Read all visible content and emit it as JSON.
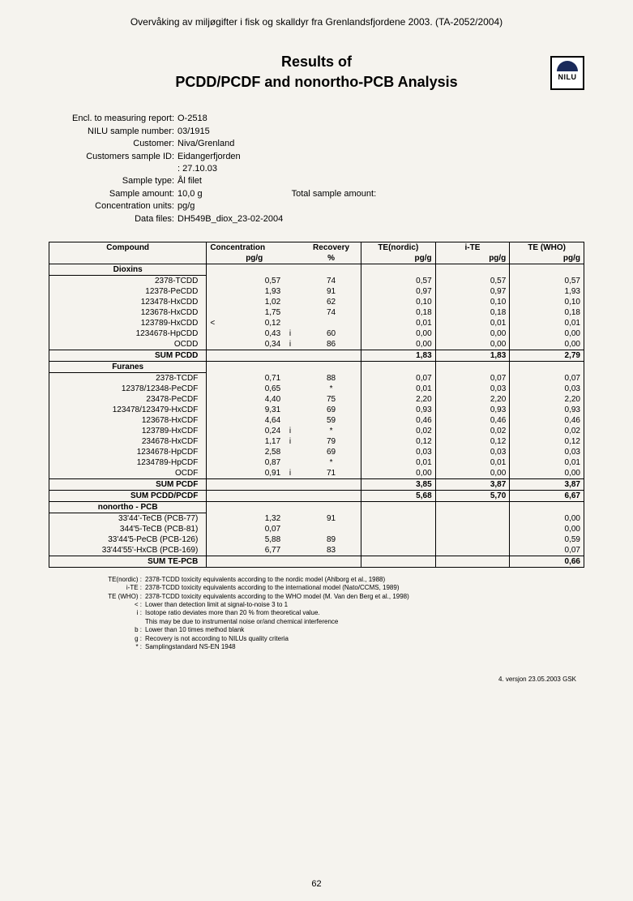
{
  "header": "Overvåking av miljøgifter i fisk og skalldyr fra Grenlandsfjordene 2003. (TA-2052/2004)",
  "title_line1": "Results of",
  "title_line2": "PCDD/PCDF and nonortho-PCB Analysis",
  "logo_label": "NILU",
  "meta": {
    "encl_label": "Encl. to measuring report:",
    "encl_val": "O-2518",
    "nilu_label": "NILU sample number:",
    "nilu_val": "03/1915",
    "cust_label": "Customer:",
    "cust_val": "Niva/Grenland",
    "csid_label": "Customers sample ID:",
    "csid_val": "Eidangerfjorden",
    "date_val": ": 27.10.03",
    "stype_label": "Sample type:",
    "stype_val": "Ål filet",
    "samount_label": "Sample amount:",
    "samount_val": "10,0 g",
    "total_label": "Total sample amount:",
    "conc_label": "Concentration units:",
    "conc_val": "pg/g",
    "data_label": "Data files:",
    "data_val": "DH549B_diox_23-02-2004"
  },
  "table": {
    "head": {
      "compound": "Compound",
      "conc": "Concentration",
      "recov": "Recovery",
      "ten": "TE(nordic)",
      "ite": "i-TE",
      "tewho": "TE (WHO)",
      "pgg": "pg/g",
      "pct": "%"
    },
    "sections": {
      "dioxins": "Dioxins",
      "furanes": "Furanes",
      "nonortho": "nonortho - PCB"
    },
    "dioxins": [
      {
        "n": "2378-TCDD",
        "c": "0,57",
        "f": "",
        "r": "74",
        "t": "0,57",
        "i": "0,57",
        "w": "0,57"
      },
      {
        "n": "12378-PeCDD",
        "c": "1,93",
        "f": "",
        "r": "91",
        "t": "0,97",
        "i": "0,97",
        "w": "1,93"
      },
      {
        "n": "123478-HxCDD",
        "c": "1,02",
        "f": "",
        "r": "62",
        "t": "0,10",
        "i": "0,10",
        "w": "0,10"
      },
      {
        "n": "123678-HxCDD",
        "c": "1,75",
        "f": "",
        "r": "74",
        "t": "0,18",
        "i": "0,18",
        "w": "0,18"
      },
      {
        "n": "123789-HxCDD",
        "c": "0,12",
        "pre": "<",
        "f": "",
        "r": "",
        "t": "0,01",
        "i": "0,01",
        "w": "0,01"
      },
      {
        "n": "1234678-HpCDD",
        "c": "0,43",
        "f": "i",
        "r": "60",
        "t": "0,00",
        "i": "0,00",
        "w": "0,00"
      },
      {
        "n": "OCDD",
        "c": "0,34",
        "f": "i",
        "r": "86",
        "t": "0,00",
        "i": "0,00",
        "w": "0,00"
      }
    ],
    "sum_pcdd": {
      "n": "SUM PCDD",
      "t": "1,83",
      "i": "1,83",
      "w": "2,79"
    },
    "furanes": [
      {
        "n": "2378-TCDF",
        "c": "0,71",
        "f": "",
        "r": "88",
        "t": "0,07",
        "i": "0,07",
        "w": "0,07"
      },
      {
        "n": "12378/12348-PeCDF",
        "c": "0,65",
        "f": "",
        "r": "*",
        "t": "0,01",
        "i": "0,03",
        "w": "0,03"
      },
      {
        "n": "23478-PeCDF",
        "c": "4,40",
        "f": "",
        "r": "75",
        "t": "2,20",
        "i": "2,20",
        "w": "2,20"
      },
      {
        "n": "123478/123479-HxCDF",
        "c": "9,31",
        "f": "",
        "r": "69",
        "t": "0,93",
        "i": "0,93",
        "w": "0,93"
      },
      {
        "n": "123678-HxCDF",
        "c": "4,64",
        "f": "",
        "r": "59",
        "t": "0,46",
        "i": "0,46",
        "w": "0,46"
      },
      {
        "n": "123789-HxCDF",
        "c": "0,24",
        "f": "i",
        "r": "*",
        "t": "0,02",
        "i": "0,02",
        "w": "0,02"
      },
      {
        "n": "234678-HxCDF",
        "c": "1,17",
        "f": "i",
        "r": "79",
        "t": "0,12",
        "i": "0,12",
        "w": "0,12"
      },
      {
        "n": "1234678-HpCDF",
        "c": "2,58",
        "f": "",
        "r": "69",
        "t": "0,03",
        "i": "0,03",
        "w": "0,03"
      },
      {
        "n": "1234789-HpCDF",
        "c": "0,87",
        "f": "",
        "r": "*",
        "t": "0,01",
        "i": "0,01",
        "w": "0,01"
      },
      {
        "n": "OCDF",
        "c": "0,91",
        "f": "i",
        "r": "71",
        "t": "0,00",
        "i": "0,00",
        "w": "0,00"
      }
    ],
    "sum_pcdf": {
      "n": "SUM PCDF",
      "t": "3,85",
      "i": "3,87",
      "w": "3,87"
    },
    "sum_pcdd_pcdf": {
      "n": "SUM PCDD/PCDF",
      "t": "5,68",
      "i": "5,70",
      "w": "6,67"
    },
    "pcb": [
      {
        "n": "33'44'-TeCB (PCB-77)",
        "c": "1,32",
        "f": "",
        "r": "91",
        "t": "",
        "i": "",
        "w": "0,00"
      },
      {
        "n": "344'5-TeCB (PCB-81)",
        "c": "0,07",
        "f": "",
        "r": "",
        "t": "",
        "i": "",
        "w": "0,00"
      },
      {
        "n": "33'44'5-PeCB (PCB-126)",
        "c": "5,88",
        "f": "",
        "r": "89",
        "t": "",
        "i": "",
        "w": "0,59"
      },
      {
        "n": "33'44'55'-HxCB (PCB-169)",
        "c": "6,77",
        "f": "",
        "r": "83",
        "t": "",
        "i": "",
        "w": "0,07"
      }
    ],
    "sum_tepcb": {
      "n": "SUM TE-PCB",
      "w": "0,66"
    }
  },
  "footnotes": [
    {
      "k": "TE(nordic) :",
      "v": "2378-TCDD toxicity equivalents according to the nordic model (Ahlborg et al., 1988)"
    },
    {
      "k": "i-TE :",
      "v": "2378-TCDD toxicity equivalents according to the international model (Nato/CCMS, 1989)"
    },
    {
      "k": "TE (WHO) :",
      "v": "2378-TCDD toxicity equivalents according to the WHO model (M. Van den Berg et al., 1998)"
    },
    {
      "k": "< :",
      "v": "Lower than detection limit at signal-to-noise 3 to 1"
    },
    {
      "k": "i :",
      "v": "Isotope ratio deviates more than 20 % from theoretical value."
    },
    {
      "k": "",
      "v": "This may be due to instrumental noise or/and chemical interference"
    },
    {
      "k": "b :",
      "v": "Lower than 10 times method blank"
    },
    {
      "k": "g :",
      "v": "Recovery is not according to NILUs quality criteria"
    },
    {
      "k": "* :",
      "v": "Samplingstandard NS-EN 1948"
    }
  ],
  "version": "4. versjon 23.05.2003 GSK",
  "page_number": "62"
}
